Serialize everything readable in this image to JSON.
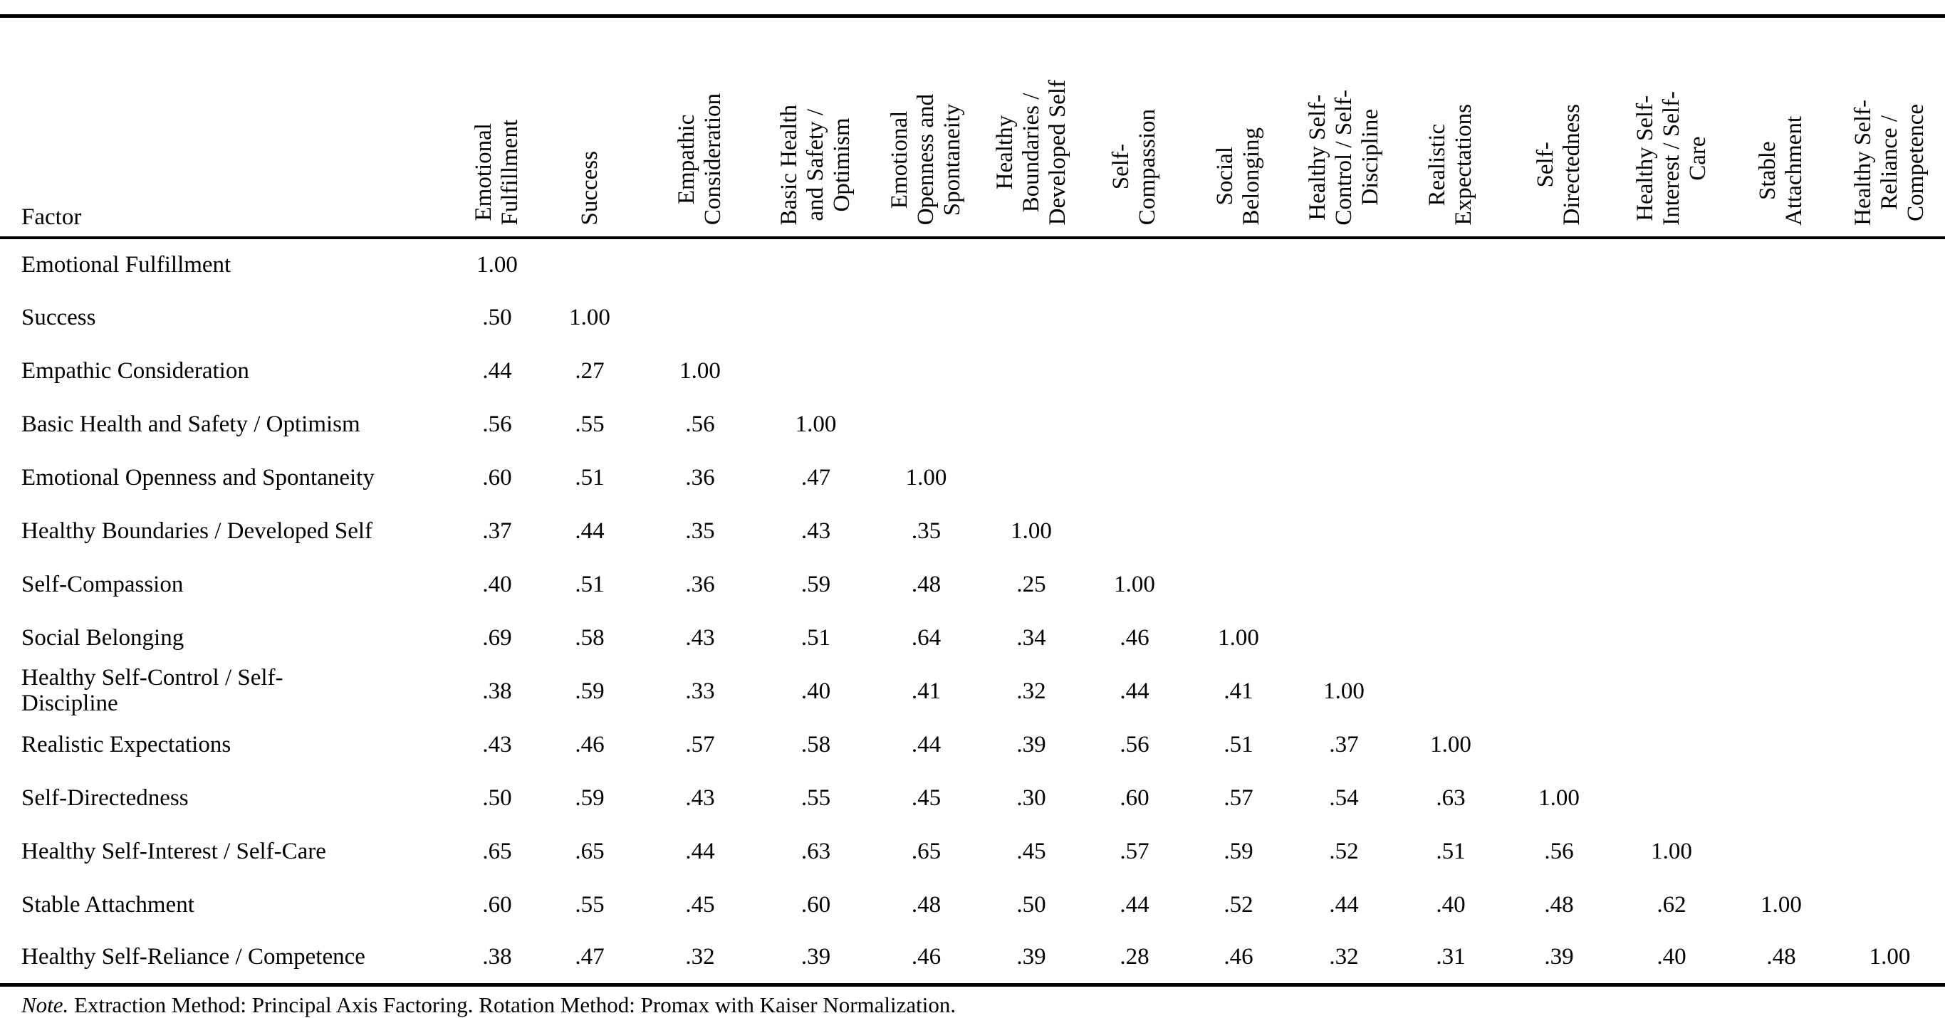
{
  "table": {
    "corner_header": "Factor",
    "columns": [
      "Emotional\nFulfillment",
      "Success",
      "Empathic\nConsideration",
      "Basic Health\nand Safety /\nOptimism",
      "Emotional\nOpenness and\nSpontaneity",
      "Healthy\nBoundaries /\nDeveloped Self",
      "Self-\nCompassion",
      "Social\nBelonging",
      "Healthy Self-\nControl / Self-\nDiscipline",
      "Realistic\nExpectations",
      "Self-\nDirectedness",
      "Healthy Self-\nInterest / Self-\nCare",
      "Stable\nAttachment",
      "Healthy Self-\nReliance /\nCompetence"
    ],
    "rows": [
      {
        "factor": "Emotional Fulfillment",
        "values": [
          "1.00"
        ]
      },
      {
        "factor": "Success",
        "values": [
          ".50",
          "1.00"
        ]
      },
      {
        "factor": "Empathic Consideration",
        "values": [
          ".44",
          ".27",
          "1.00"
        ]
      },
      {
        "factor": "Basic Health and Safety / Optimism",
        "values": [
          ".56",
          ".55",
          ".56",
          "1.00"
        ]
      },
      {
        "factor": "Emotional Openness and Spontaneity",
        "values": [
          ".60",
          ".51",
          ".36",
          ".47",
          "1.00"
        ]
      },
      {
        "factor": "Healthy Boundaries / Developed Self",
        "values": [
          ".37",
          ".44",
          ".35",
          ".43",
          ".35",
          "1.00"
        ]
      },
      {
        "factor": "Self-Compassion",
        "values": [
          ".40",
          ".51",
          ".36",
          ".59",
          ".48",
          ".25",
          "1.00"
        ]
      },
      {
        "factor": "Social Belonging",
        "values": [
          ".69",
          ".58",
          ".43",
          ".51",
          ".64",
          ".34",
          ".46",
          "1.00"
        ]
      },
      {
        "factor": "Healthy Self-Control / Self-\nDiscipline",
        "values": [
          ".38",
          ".59",
          ".33",
          ".40",
          ".41",
          ".32",
          ".44",
          ".41",
          "1.00"
        ]
      },
      {
        "factor": "Realistic Expectations",
        "values": [
          ".43",
          ".46",
          ".57",
          ".58",
          ".44",
          ".39",
          ".56",
          ".51",
          ".37",
          "1.00"
        ]
      },
      {
        "factor": "Self-Directedness",
        "values": [
          ".50",
          ".59",
          ".43",
          ".55",
          ".45",
          ".30",
          ".60",
          ".57",
          ".54",
          ".63",
          "1.00"
        ]
      },
      {
        "factor": "Healthy Self-Interest / Self-Care",
        "values": [
          ".65",
          ".65",
          ".44",
          ".63",
          ".65",
          ".45",
          ".57",
          ".59",
          ".52",
          ".51",
          ".56",
          "1.00"
        ]
      },
      {
        "factor": "Stable Attachment",
        "values": [
          ".60",
          ".55",
          ".45",
          ".60",
          ".48",
          ".50",
          ".44",
          ".52",
          ".44",
          ".40",
          ".48",
          ".62",
          "1.00"
        ]
      },
      {
        "factor": "Healthy Self-Reliance / Competence",
        "values": [
          ".38",
          ".47",
          ".32",
          ".39",
          ".46",
          ".39",
          ".28",
          ".46",
          ".32",
          ".31",
          ".39",
          ".40",
          ".48",
          "1.00"
        ]
      }
    ]
  },
  "note": {
    "prefix": "Note.",
    "text": " Extraction Method: Principal Axis Factoring. Rotation Method: Promax with Kaiser Normalization."
  }
}
